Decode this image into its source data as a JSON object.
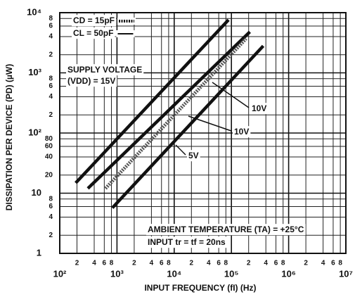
{
  "chart_data": {
    "type": "line",
    "xlabel": "INPUT FREQUENCY (fI) (Hz)",
    "ylabel": "DISSIPATION PER DEVICE (PD) (µW)",
    "xscale": "log",
    "yscale": "log",
    "xlim": [
      100,
      10000000
    ],
    "ylim": [
      1,
      10000
    ],
    "xticks": [
      {
        "value": 100,
        "label": "10²"
      },
      {
        "value": 200,
        "label": "2"
      },
      {
        "value": 400,
        "label": "4"
      },
      {
        "value": 600,
        "label": "6"
      },
      {
        "value": 800,
        "label": "8"
      },
      {
        "value": 1000,
        "label": "10³"
      },
      {
        "value": 2000,
        "label": "2"
      },
      {
        "value": 4000,
        "label": "4"
      },
      {
        "value": 6000,
        "label": "6"
      },
      {
        "value": 8000,
        "label": "8"
      },
      {
        "value": 10000,
        "label": "10⁴"
      },
      {
        "value": 20000,
        "label": "2"
      },
      {
        "value": 40000,
        "label": "4"
      },
      {
        "value": 60000,
        "label": "6"
      },
      {
        "value": 80000,
        "label": "8"
      },
      {
        "value": 100000,
        "label": "10⁵"
      },
      {
        "value": 200000,
        "label": "2"
      },
      {
        "value": 400000,
        "label": "4"
      },
      {
        "value": 600000,
        "label": "6"
      },
      {
        "value": 800000,
        "label": "8"
      },
      {
        "value": 1000000,
        "label": "10⁶"
      },
      {
        "value": 2000000,
        "label": "2"
      },
      {
        "value": 4000000,
        "label": "4"
      },
      {
        "value": 6000000,
        "label": "6"
      },
      {
        "value": 8000000,
        "label": "8"
      },
      {
        "value": 10000000,
        "label": "10⁷"
      }
    ],
    "yticks": [
      1,
      2,
      4,
      6,
      8,
      10,
      20,
      40,
      60,
      80,
      {
        "value": 100,
        "label": "10²"
      },
      {
        "value": 200,
        "label": "2"
      },
      {
        "value": 400,
        "label": "4"
      },
      {
        "value": 600,
        "label": "6"
      },
      {
        "value": 800,
        "label": "8"
      },
      {
        "value": 1000,
        "label": "10³"
      },
      {
        "value": 2000,
        "label": "2"
      },
      {
        "value": 4000,
        "label": "4"
      },
      {
        "value": 6000,
        "label": "6"
      },
      {
        "value": 8000,
        "label": "8"
      },
      {
        "value": 10000,
        "label": "10⁴"
      }
    ],
    "grid": true,
    "legend": [
      {
        "label": "CD = 15pF",
        "dashed": true
      },
      {
        "label": "CL = 50pF",
        "dashed": false
      }
    ],
    "series": [
      {
        "x": [
          190,
          89000
        ],
        "values": [
          14.8,
          7600
        ],
        "dashed": false,
        "color": "#111111"
      },
      {
        "label": "10V",
        "x": [
          310,
          210000
        ],
        "values": [
          12,
          4800
        ],
        "dashed": false,
        "color": "#111111"
      },
      {
        "label": "10V",
        "x": [
          630,
          180000
        ],
        "values": [
          12,
          3700
        ],
        "dashed": true,
        "color": "#555555"
      },
      {
        "label": "5V",
        "x": [
          830,
          360000
        ],
        "values": [
          5.7,
          2800
        ],
        "dashed": false,
        "color": "#111111"
      }
    ],
    "annotations": [
      "SUPPLY VOLTAGE",
      "(VDD) = 15V",
      "AMBIENT TEMPERATURE (TA) = +25°C",
      "INPUT tr = tf = 20ns"
    ]
  }
}
